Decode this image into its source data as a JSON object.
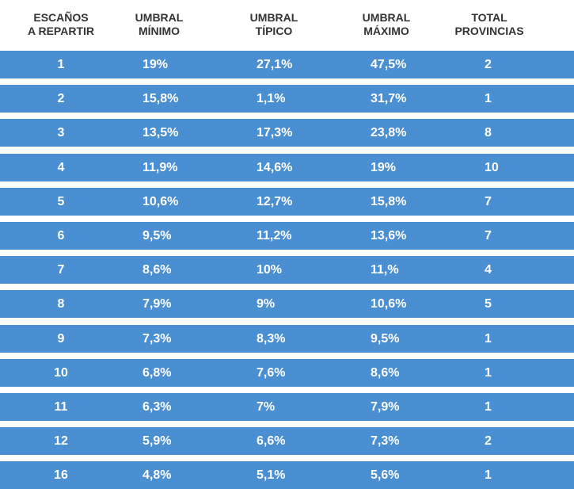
{
  "table": {
    "header": [
      [
        "ESCAÑOS",
        "A REPARTIR"
      ],
      [
        "UMBRAL",
        "MÍNIMO"
      ],
      [
        "UMBRAL",
        "TÍPICO"
      ],
      [
        "UMBRAL",
        "MÁXIMO"
      ],
      [
        "TOTAL",
        "PROVINCIAS"
      ]
    ],
    "rows": [
      [
        "1",
        "19%",
        "27,1%",
        "47,5%",
        "2"
      ],
      [
        "2",
        "15,8%",
        "1,1%",
        "31,7%",
        "1"
      ],
      [
        "3",
        "13,5%",
        "17,3%",
        "23,8%",
        "8"
      ],
      [
        "4",
        "11,9%",
        "14,6%",
        "19%",
        "10"
      ],
      [
        "5",
        "10,6%",
        "12,7%",
        "15,8%",
        "7"
      ],
      [
        "6",
        "9,5%",
        "11,2%",
        "13,6%",
        "7"
      ],
      [
        "7",
        "8,6%",
        "10%",
        "11,%",
        "4"
      ],
      [
        "8",
        "7,9%",
        "9%",
        "10,6%",
        "5"
      ],
      [
        "9",
        "7,3%",
        "8,3%",
        "9,5%",
        "1"
      ],
      [
        "10",
        "6,8%",
        "7,6%",
        "8,6%",
        "1"
      ],
      [
        "11",
        "6,3%",
        "7%",
        "7,9%",
        "1"
      ],
      [
        "12",
        "5,9%",
        "6,6%",
        "7,3%",
        "2"
      ],
      [
        "16",
        "4,8%",
        "5,1%",
        "5,6%",
        "1"
      ]
    ]
  }
}
